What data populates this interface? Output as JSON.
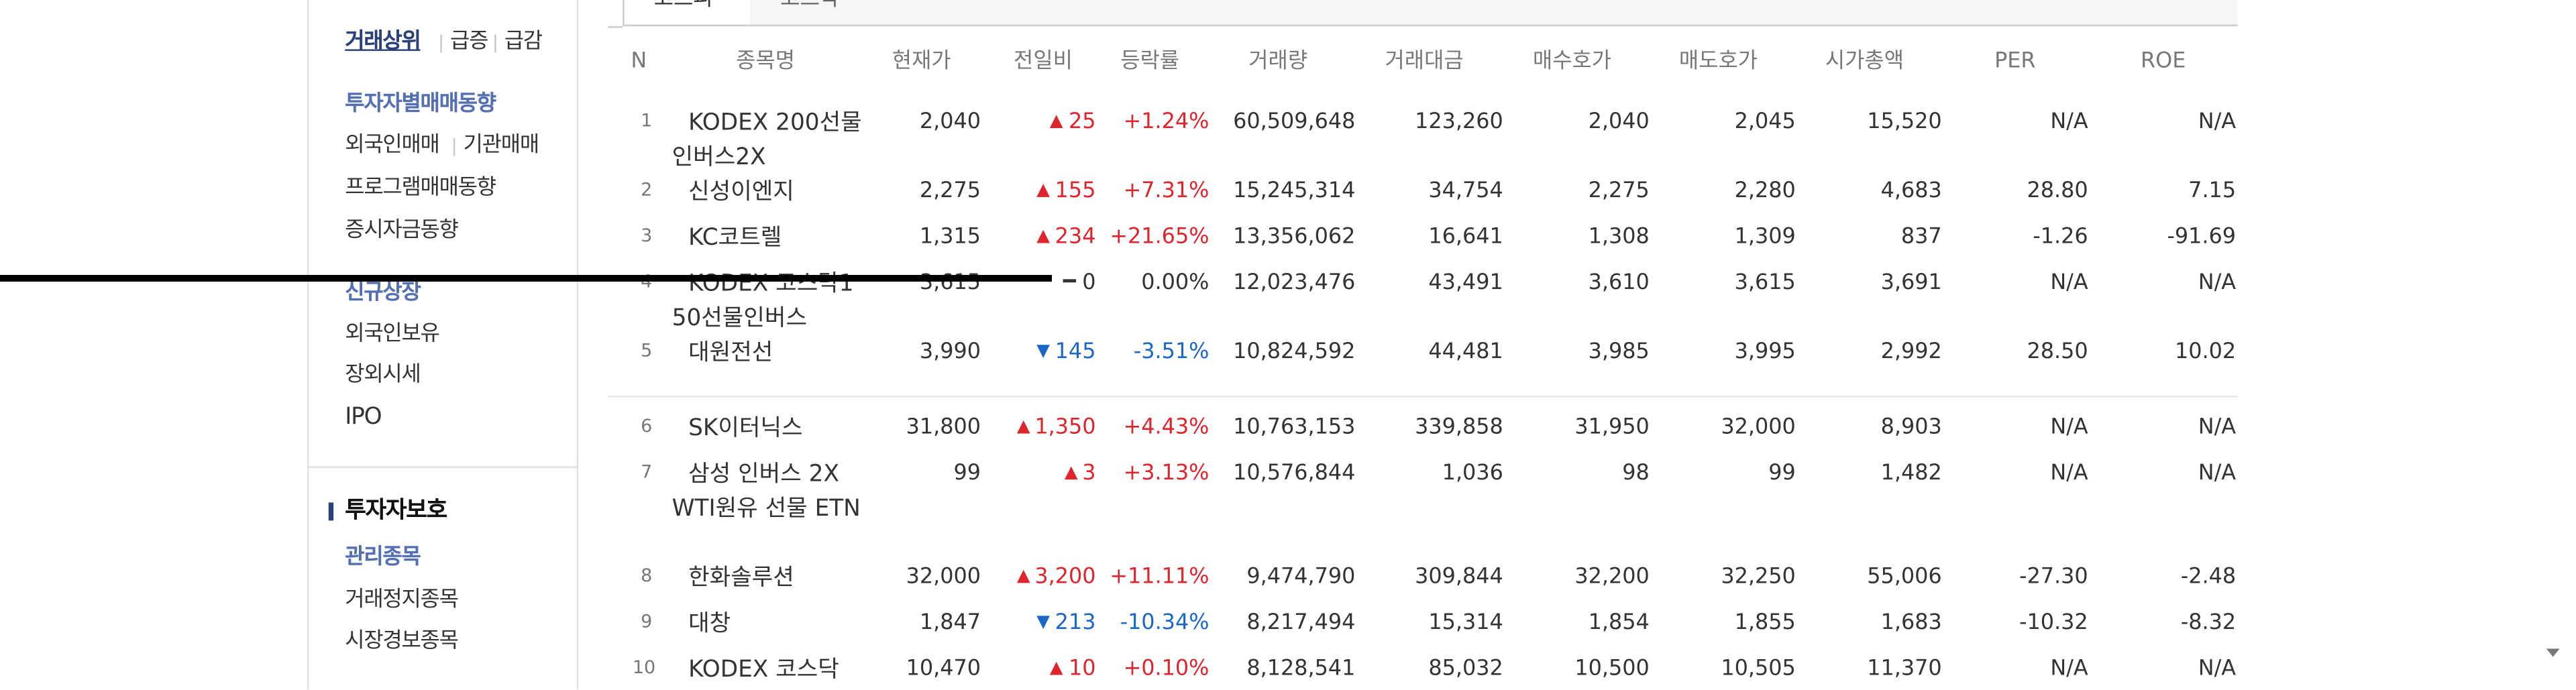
{
  "sidebar": {
    "top_links": [
      "거래상위",
      "급증",
      "급감"
    ],
    "group1": [
      "투자자별매매동향"
    ],
    "foreign_inst": [
      "외국인매매",
      "기관매매"
    ],
    "group1_more": [
      "프로그램매매동향",
      "증시자금동향"
    ],
    "group2": [
      "신규상장",
      "외국인보유",
      "장외시세",
      "IPO"
    ],
    "section_title": "투자자보호",
    "group3": [
      "관리종목",
      "거래정지종목",
      "시장경보종목"
    ]
  },
  "tabs": [
    "코스피",
    "코스닥"
  ],
  "table": {
    "headers": [
      "N",
      "종목명",
      "현재가",
      "전일비",
      "등락률",
      "거래량",
      "거래대금",
      "매수호가",
      "매도호가",
      "시가총액",
      "PER",
      "ROE"
    ],
    "rows": [
      {
        "rank": "1",
        "name": "KODEX 200선물인버스2X",
        "price": "2,040",
        "dir": "up",
        "change": "25",
        "rate": "+1.24%",
        "volume": "60,509,648",
        "amount": "123,260",
        "bid": "2,040",
        "ask": "2,045",
        "mcap": "15,520",
        "per": "N/A",
        "roe": "N/A"
      },
      {
        "rank": "2",
        "name": "신성이엔지",
        "price": "2,275",
        "dir": "up",
        "change": "155",
        "rate": "+7.31%",
        "volume": "15,245,314",
        "amount": "34,754",
        "bid": "2,275",
        "ask": "2,280",
        "mcap": "4,683",
        "per": "28.80",
        "roe": "7.15"
      },
      {
        "rank": "3",
        "name": "KC코트렐",
        "price": "1,315",
        "dir": "up",
        "change": "234",
        "rate": "+21.65%",
        "volume": "13,356,062",
        "amount": "16,641",
        "bid": "1,308",
        "ask": "1,309",
        "mcap": "837",
        "per": "-1.26",
        "roe": "-91.69"
      },
      {
        "rank": "4",
        "name": "KODEX 코스닥150선물인버스",
        "price": "3,615",
        "dir": "flat",
        "change": "0",
        "rate": "0.00%",
        "volume": "12,023,476",
        "amount": "43,491",
        "bid": "3,610",
        "ask": "3,615",
        "mcap": "3,691",
        "per": "N/A",
        "roe": "N/A"
      },
      {
        "rank": "5",
        "name": "대원전선",
        "price": "3,990",
        "dir": "down",
        "change": "145",
        "rate": "-3.51%",
        "volume": "10,824,592",
        "amount": "44,481",
        "bid": "3,985",
        "ask": "3,995",
        "mcap": "2,992",
        "per": "28.50",
        "roe": "10.02"
      },
      {
        "rank": "6",
        "name": "SK이터닉스",
        "price": "31,800",
        "dir": "up",
        "change": "1,350",
        "rate": "+4.43%",
        "volume": "10,763,153",
        "amount": "339,858",
        "bid": "31,950",
        "ask": "32,000",
        "mcap": "8,903",
        "per": "N/A",
        "roe": "N/A"
      },
      {
        "rank": "7",
        "name": "삼성 인버스 2X WTI원유 선물 ETN",
        "price": "99",
        "dir": "up",
        "change": "3",
        "rate": "+3.13%",
        "volume": "10,576,844",
        "amount": "1,036",
        "bid": "98",
        "ask": "99",
        "mcap": "1,482",
        "per": "N/A",
        "roe": "N/A"
      },
      {
        "rank": "8",
        "name": "한화솔루션",
        "price": "32,000",
        "dir": "up",
        "change": "3,200",
        "rate": "+11.11%",
        "volume": "9,474,790",
        "amount": "309,844",
        "bid": "32,200",
        "ask": "32,250",
        "mcap": "55,006",
        "per": "-27.30",
        "roe": "-2.48"
      },
      {
        "rank": "9",
        "name": "대창",
        "price": "1,847",
        "dir": "down",
        "change": "213",
        "rate": "-10.34%",
        "volume": "8,217,494",
        "amount": "15,314",
        "bid": "1,854",
        "ask": "1,855",
        "mcap": "1,683",
        "per": "-10.32",
        "roe": "-8.32"
      },
      {
        "rank": "10",
        "name": "KODEX 코스닥",
        "price": "10,470",
        "dir": "up",
        "change": "10",
        "rate": "+0.10%",
        "volume": "8,128,541",
        "amount": "85,032",
        "bid": "10,500",
        "ask": "10,505",
        "mcap": "11,370",
        "per": "N/A",
        "roe": "N/A"
      }
    ]
  },
  "colors": {
    "up": "#e0242b",
    "down": "#1a67c9",
    "nav_blue": "#5470b3",
    "nav_active": "#2b3f7b"
  },
  "icons": {
    "scroll_down": "scroll-down-arrow-icon"
  }
}
